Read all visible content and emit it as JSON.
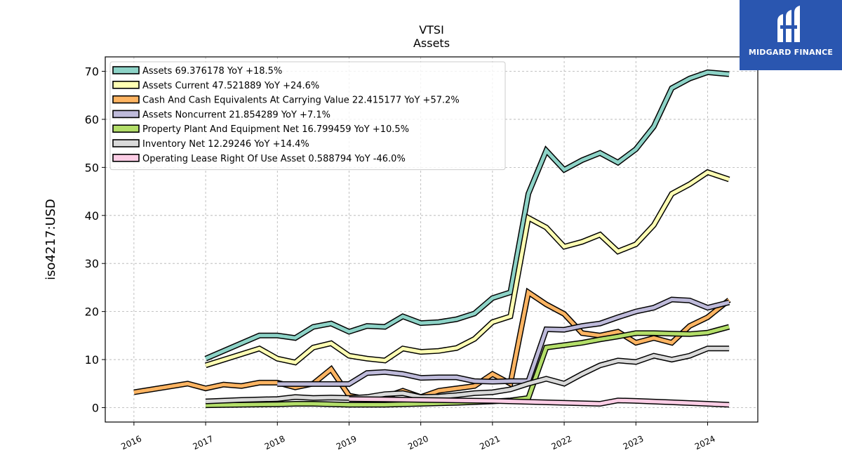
{
  "logo": {
    "text": "MIDGARD FINANCE",
    "background": "#2a56b0"
  },
  "chart_data": {
    "type": "line",
    "title": "VTSI",
    "subtitle": "Assets",
    "ylabel": "iso4217:USD",
    "xlabel": "",
    "xlim": [
      2015.6,
      2024.7
    ],
    "ylim": [
      -3,
      73
    ],
    "x_ticks": [
      "2016",
      "2017",
      "2018",
      "2019",
      "2020",
      "2021",
      "2022",
      "2023",
      "2024"
    ],
    "y_ticks": [
      "0",
      "10",
      "20",
      "30",
      "40",
      "50",
      "60",
      "70"
    ],
    "grid": true,
    "legend_position": "top-left",
    "series": [
      {
        "name": "Assets  69.376178 YoY +18.5%",
        "color": "#8dd3c7",
        "points": [
          [
            2017.0,
            10.2
          ],
          [
            2017.75,
            15.0
          ],
          [
            2018.0,
            15.0
          ],
          [
            2018.25,
            14.5
          ],
          [
            2018.5,
            16.8
          ],
          [
            2018.75,
            17.5
          ],
          [
            2019.0,
            15.8
          ],
          [
            2019.25,
            17.0
          ],
          [
            2019.5,
            16.8
          ],
          [
            2019.75,
            19.0
          ],
          [
            2020.0,
            17.6
          ],
          [
            2020.25,
            17.8
          ],
          [
            2020.5,
            18.4
          ],
          [
            2020.75,
            19.6
          ],
          [
            2021.0,
            22.8
          ],
          [
            2021.25,
            24.0
          ],
          [
            2021.5,
            44.5
          ],
          [
            2021.75,
            53.5
          ],
          [
            2022.0,
            49.5
          ],
          [
            2022.25,
            51.5
          ],
          [
            2022.5,
            53.0
          ],
          [
            2022.75,
            51.0
          ],
          [
            2023.0,
            53.8
          ],
          [
            2023.25,
            58.5
          ],
          [
            2023.5,
            66.5
          ],
          [
            2023.75,
            68.5
          ],
          [
            2024.0,
            69.8
          ],
          [
            2024.3,
            69.4
          ]
        ]
      },
      {
        "name": "Assets Current  47.521889 YoY +24.6%",
        "color": "#ffffb3",
        "points": [
          [
            2017.0,
            8.8
          ],
          [
            2017.75,
            12.3
          ],
          [
            2018.0,
            10.2
          ],
          [
            2018.25,
            9.4
          ],
          [
            2018.5,
            12.5
          ],
          [
            2018.75,
            13.4
          ],
          [
            2019.0,
            10.8
          ],
          [
            2019.25,
            10.2
          ],
          [
            2019.5,
            9.8
          ],
          [
            2019.75,
            12.3
          ],
          [
            2020.0,
            11.6
          ],
          [
            2020.25,
            11.8
          ],
          [
            2020.5,
            12.4
          ],
          [
            2020.75,
            14.3
          ],
          [
            2021.0,
            17.8
          ],
          [
            2021.25,
            19.0
          ],
          [
            2021.5,
            39.5
          ],
          [
            2021.75,
            37.5
          ],
          [
            2022.0,
            33.5
          ],
          [
            2022.25,
            34.5
          ],
          [
            2022.5,
            36.0
          ],
          [
            2022.75,
            32.5
          ],
          [
            2023.0,
            34.0
          ],
          [
            2023.25,
            38.0
          ],
          [
            2023.5,
            44.5
          ],
          [
            2023.75,
            46.5
          ],
          [
            2024.0,
            49.0
          ],
          [
            2024.3,
            47.5
          ]
        ]
      },
      {
        "name": "Cash And Cash Equivalents At Carrying Value  22.415177 YoY +57.2%",
        "color": "#fdb462",
        "points": [
          [
            2016.0,
            3.2
          ],
          [
            2016.75,
            5.0
          ],
          [
            2017.0,
            4.0
          ],
          [
            2017.25,
            4.8
          ],
          [
            2017.5,
            4.5
          ],
          [
            2017.75,
            5.2
          ],
          [
            2018.0,
            5.2
          ],
          [
            2018.25,
            4.2
          ],
          [
            2018.5,
            5.0
          ],
          [
            2018.75,
            8.0
          ],
          [
            2019.0,
            2.5
          ],
          [
            2019.25,
            1.8
          ],
          [
            2019.5,
            2.2
          ],
          [
            2019.75,
            3.5
          ],
          [
            2020.0,
            2.2
          ],
          [
            2020.25,
            3.5
          ],
          [
            2020.5,
            4.0
          ],
          [
            2020.75,
            4.5
          ],
          [
            2021.0,
            7.0
          ],
          [
            2021.25,
            5.0
          ],
          [
            2021.5,
            24.0
          ],
          [
            2021.75,
            21.5
          ],
          [
            2022.0,
            19.5
          ],
          [
            2022.25,
            15.5
          ],
          [
            2022.5,
            15.0
          ],
          [
            2022.75,
            15.8
          ],
          [
            2023.0,
            13.5
          ],
          [
            2023.25,
            14.5
          ],
          [
            2023.5,
            13.5
          ],
          [
            2023.75,
            17.0
          ],
          [
            2024.0,
            18.8
          ],
          [
            2024.3,
            22.4
          ]
        ]
      },
      {
        "name": "Assets Noncurrent  21.854289 YoY +7.1%",
        "color": "#bebada",
        "points": [
          [
            2018.0,
            4.9
          ],
          [
            2018.5,
            4.9
          ],
          [
            2019.0,
            4.9
          ],
          [
            2019.25,
            7.2
          ],
          [
            2019.5,
            7.4
          ],
          [
            2019.75,
            7.0
          ],
          [
            2020.0,
            6.2
          ],
          [
            2020.25,
            6.3
          ],
          [
            2020.5,
            6.3
          ],
          [
            2020.75,
            5.5
          ],
          [
            2021.0,
            5.4
          ],
          [
            2021.25,
            5.5
          ],
          [
            2021.5,
            5.5
          ],
          [
            2021.75,
            16.3
          ],
          [
            2022.0,
            16.2
          ],
          [
            2022.25,
            17.0
          ],
          [
            2022.5,
            17.5
          ],
          [
            2022.75,
            18.8
          ],
          [
            2023.0,
            20.0
          ],
          [
            2023.25,
            20.8
          ],
          [
            2023.5,
            22.5
          ],
          [
            2023.75,
            22.3
          ],
          [
            2024.0,
            20.8
          ],
          [
            2024.3,
            21.9
          ]
        ]
      },
      {
        "name": "Property Plant And Equipment Net  16.799459 YoY +10.5%",
        "color": "#b3de69",
        "points": [
          [
            2017.0,
            0.5
          ],
          [
            2017.5,
            0.6
          ],
          [
            2018.0,
            0.7
          ],
          [
            2018.25,
            0.8
          ],
          [
            2018.5,
            0.8
          ],
          [
            2019.0,
            0.6
          ],
          [
            2019.5,
            0.6
          ],
          [
            2020.0,
            0.8
          ],
          [
            2020.5,
            1.0
          ],
          [
            2021.0,
            1.3
          ],
          [
            2021.25,
            1.5
          ],
          [
            2021.5,
            2.0
          ],
          [
            2021.75,
            12.5
          ],
          [
            2022.0,
            13.0
          ],
          [
            2022.25,
            13.5
          ],
          [
            2022.5,
            14.2
          ],
          [
            2022.75,
            14.8
          ],
          [
            2023.0,
            15.5
          ],
          [
            2023.25,
            15.5
          ],
          [
            2023.5,
            15.4
          ],
          [
            2023.75,
            15.3
          ],
          [
            2024.0,
            15.6
          ],
          [
            2024.3,
            16.8
          ]
        ]
      },
      {
        "name": "Inventory Net  12.29246 YoY +14.4%",
        "color": "#d9d9d9",
        "points": [
          [
            2017.0,
            1.3
          ],
          [
            2017.5,
            1.6
          ],
          [
            2018.0,
            1.8
          ],
          [
            2018.25,
            2.2
          ],
          [
            2018.5,
            2.0
          ],
          [
            2018.75,
            2.1
          ],
          [
            2019.0,
            2.0
          ],
          [
            2019.25,
            2.2
          ],
          [
            2019.5,
            2.8
          ],
          [
            2019.75,
            3.0
          ],
          [
            2020.0,
            2.2
          ],
          [
            2020.25,
            2.3
          ],
          [
            2020.5,
            2.6
          ],
          [
            2020.75,
            3.0
          ],
          [
            2021.0,
            3.2
          ],
          [
            2021.25,
            3.8
          ],
          [
            2021.5,
            5.0
          ],
          [
            2021.75,
            6.0
          ],
          [
            2022.0,
            5.0
          ],
          [
            2022.25,
            7.0
          ],
          [
            2022.5,
            8.8
          ],
          [
            2022.75,
            9.8
          ],
          [
            2023.0,
            9.5
          ],
          [
            2023.25,
            10.8
          ],
          [
            2023.5,
            10.0
          ],
          [
            2023.75,
            10.8
          ],
          [
            2024.0,
            12.3
          ],
          [
            2024.3,
            12.3
          ]
        ]
      },
      {
        "name": "Operating Lease Right Of Use Asset  0.588794 YoY -46.0%",
        "color": "#fccde5",
        "points": [
          [
            2019.0,
            1.8
          ],
          [
            2019.5,
            1.7
          ],
          [
            2020.0,
            1.6
          ],
          [
            2020.5,
            1.5
          ],
          [
            2021.0,
            1.4
          ],
          [
            2021.5,
            1.2
          ],
          [
            2022.0,
            1.0
          ],
          [
            2022.5,
            0.8
          ],
          [
            2022.75,
            1.5
          ],
          [
            2023.0,
            1.4
          ],
          [
            2023.5,
            1.1
          ],
          [
            2024.0,
            0.8
          ],
          [
            2024.3,
            0.6
          ]
        ]
      }
    ]
  }
}
